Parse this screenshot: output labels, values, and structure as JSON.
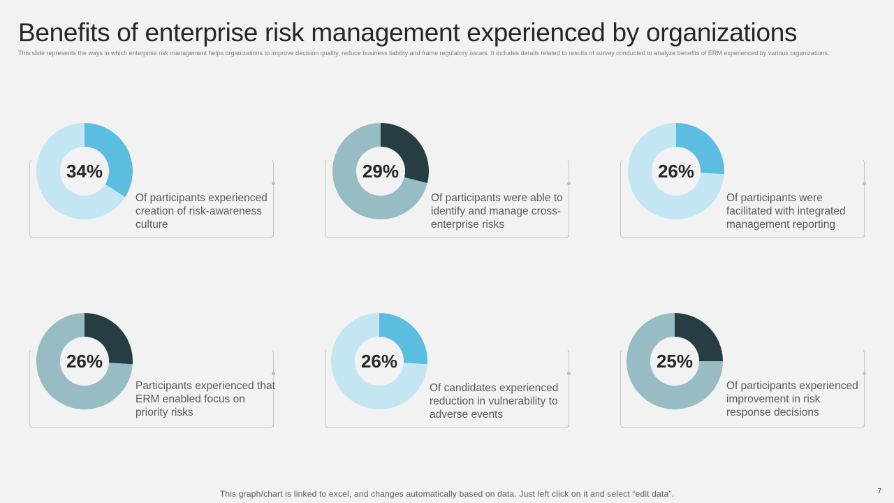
{
  "slide": {
    "title": "Benefits of enterprise risk management experienced by organizations",
    "subtitle": "This slide represents the ways in which enterprise risk management helps organizations to improve decision quality, reduce business liability and frame regulatory issues. It includes details related to results of survey conducted to analyze benefits of ERM experienced by various organizations.",
    "footer": "This graph/chart is linked to excel, and changes automatically based on data. Just left click on it and select “edit data”.",
    "page_number": "7"
  },
  "colors": {
    "accent_blue": "#5bbde0",
    "light_blue": "#c4e5f2",
    "dark_slate": "#253d43",
    "muted_teal": "#97bcc4",
    "background": "#f2f2f2"
  },
  "chart_data": [
    {
      "type": "pie",
      "label": "34%",
      "values": [
        34,
        66
      ],
      "colors": [
        "#5bbde0",
        "#c4e5f2"
      ],
      "description": "Of participants experienced creation of risk-awareness culture"
    },
    {
      "type": "pie",
      "label": "29%",
      "values": [
        29,
        71
      ],
      "colors": [
        "#253d43",
        "#97bcc4"
      ],
      "description": "Of participants were able to identify and manage cross-enterprise risks"
    },
    {
      "type": "pie",
      "label": "26%",
      "values": [
        26,
        74
      ],
      "colors": [
        "#5bbde0",
        "#c4e5f2"
      ],
      "description": "Of participants were facilitated with integrated management reporting"
    },
    {
      "type": "pie",
      "label": "26%",
      "values": [
        26,
        74
      ],
      "colors": [
        "#253d43",
        "#97bcc4"
      ],
      "description": "Participants experienced that ERM enabled focus on priority risks"
    },
    {
      "type": "pie",
      "label": "26%",
      "values": [
        26,
        74
      ],
      "colors": [
        "#5bbde0",
        "#c4e5f2"
      ],
      "description": "Of candidates experienced reduction in vulnerability to adverse events"
    },
    {
      "type": "pie",
      "label": "25%",
      "values": [
        25,
        75
      ],
      "colors": [
        "#253d43",
        "#97bcc4"
      ],
      "description": "Of participants experienced improvement in risk response decisions"
    }
  ]
}
